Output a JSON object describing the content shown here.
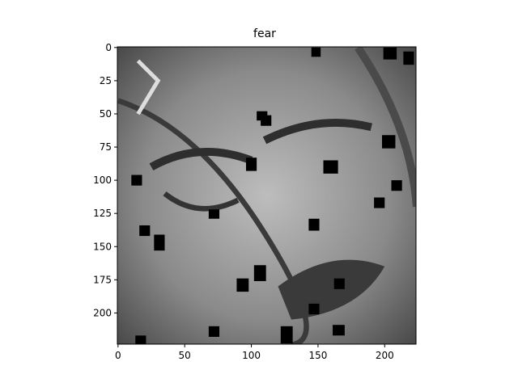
{
  "chart_data": {
    "type": "image",
    "title": "fear",
    "xlim": [
      -0.5,
      223.5
    ],
    "ylim": [
      223.5,
      -0.5
    ],
    "xticks": [
      0,
      50,
      100,
      150,
      200
    ],
    "yticks": [
      0,
      25,
      50,
      75,
      100,
      125,
      150,
      175,
      200
    ]
  }
}
